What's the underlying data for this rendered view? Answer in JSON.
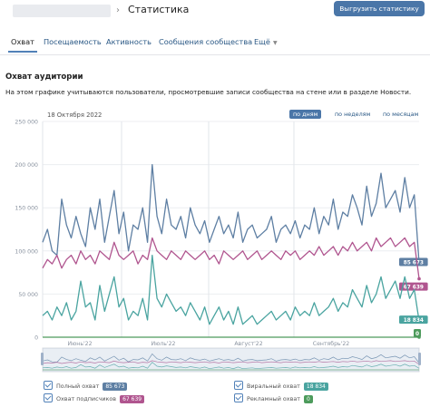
{
  "header": {
    "title": "Статистика",
    "export_label": "Выгрузить статистику"
  },
  "tabs": [
    {
      "label": "Охват",
      "active": true
    },
    {
      "label": "Посещаемость",
      "active": false
    },
    {
      "label": "Активность",
      "active": false
    },
    {
      "label": "Сообщения сообщества",
      "active": false
    },
    {
      "label": "Ещё",
      "active": false
    }
  ],
  "section": {
    "title": "Охват аудитории",
    "description": "На этом графике учитываются пользователи, просмотревшие записи сообщества на стене или в разделе Новости."
  },
  "chart_controls": {
    "date": "18 Октября 2022",
    "ranges": [
      {
        "label": "по дням",
        "active": true
      },
      {
        "label": "по неделям",
        "active": false
      },
      {
        "label": "по месяцам",
        "active": false
      }
    ]
  },
  "colors": {
    "full": "#5e7fa3",
    "subscribers": "#b0558f",
    "viral": "#4aa4a0",
    "ads": "#4d9b5c",
    "accent": "#4a76a8"
  },
  "chart_data": {
    "type": "line",
    "ylim": [
      0,
      250000
    ],
    "y_ticks": [
      "0",
      "50 000",
      "100 000",
      "150 000",
      "200 000",
      "250 000"
    ],
    "x_ticks": [
      "Июнь'22",
      "Июль'22",
      "Август'22",
      "Сентябрь'22"
    ],
    "series": [
      {
        "name": "Полный охват",
        "last_value_label": "85 673",
        "values": [
          110000,
          125000,
          100000,
          95000,
          160000,
          130000,
          115000,
          140000,
          120000,
          105000,
          150000,
          125000,
          160000,
          110000,
          140000,
          170000,
          120000,
          145000,
          100000,
          130000,
          125000,
          150000,
          110000,
          200000,
          140000,
          120000,
          160000,
          130000,
          125000,
          140000,
          115000,
          150000,
          130000,
          120000,
          135000,
          110000,
          125000,
          140000,
          120000,
          130000,
          115000,
          145000,
          110000,
          125000,
          130000,
          115000,
          120000,
          125000,
          140000,
          110000,
          125000,
          130000,
          120000,
          135000,
          115000,
          130000,
          125000,
          150000,
          120000,
          140000,
          130000,
          160000,
          125000,
          145000,
          140000,
          165000,
          150000,
          130000,
          175000,
          140000,
          155000,
          190000,
          150000,
          160000,
          170000,
          145000,
          185000,
          150000,
          165000,
          85673
        ]
      },
      {
        "name": "Охват подписчиков",
        "last_value_label": "67 639",
        "values": [
          80000,
          90000,
          85000,
          95000,
          80000,
          90000,
          95000,
          85000,
          100000,
          90000,
          95000,
          85000,
          100000,
          95000,
          90000,
          110000,
          95000,
          90000,
          95000,
          100000,
          85000,
          95000,
          90000,
          115000,
          100000,
          95000,
          90000,
          100000,
          95000,
          90000,
          100000,
          95000,
          90000,
          95000,
          100000,
          90000,
          95000,
          85000,
          100000,
          95000,
          90000,
          95000,
          100000,
          90000,
          95000,
          100000,
          90000,
          95000,
          100000,
          95000,
          90000,
          100000,
          95000,
          100000,
          90000,
          95000,
          100000,
          95000,
          105000,
          95000,
          100000,
          105000,
          95000,
          105000,
          100000,
          110000,
          100000,
          105000,
          110000,
          100000,
          115000,
          105000,
          110000,
          115000,
          105000,
          110000,
          115000,
          105000,
          110000,
          67639
        ]
      },
      {
        "name": "Виральный охват",
        "last_value_label": "18 834",
        "values": [
          25000,
          30000,
          20000,
          35000,
          25000,
          40000,
          20000,
          30000,
          65000,
          35000,
          40000,
          20000,
          60000,
          30000,
          50000,
          70000,
          35000,
          45000,
          20000,
          30000,
          25000,
          45000,
          20000,
          95000,
          45000,
          35000,
          50000,
          40000,
          30000,
          35000,
          25000,
          40000,
          30000,
          20000,
          35000,
          15000,
          25000,
          35000,
          20000,
          30000,
          15000,
          35000,
          15000,
          20000,
          25000,
          15000,
          20000,
          25000,
          30000,
          20000,
          25000,
          30000,
          20000,
          35000,
          25000,
          30000,
          25000,
          40000,
          25000,
          30000,
          35000,
          45000,
          30000,
          40000,
          35000,
          55000,
          45000,
          35000,
          60000,
          40000,
          50000,
          70000,
          45000,
          55000,
          65000,
          45000,
          70000,
          45000,
          55000,
          18834
        ]
      },
      {
        "name": "Рекламный охват",
        "last_value_label": "0",
        "values": [
          0,
          0,
          0,
          0,
          0,
          0,
          0,
          0,
          0,
          0,
          0,
          0,
          0,
          0,
          0,
          0,
          0,
          0,
          0,
          0,
          0,
          0,
          0,
          0,
          0,
          0,
          0,
          0,
          0,
          0,
          0,
          0,
          0,
          0,
          0,
          0,
          0,
          0,
          0,
          0,
          0,
          0,
          0,
          0,
          0,
          0,
          0,
          0,
          0,
          0,
          0,
          0,
          0,
          0,
          0,
          0,
          0,
          0,
          0,
          0,
          0,
          0,
          0,
          0,
          0,
          0,
          0,
          0,
          0,
          0,
          0,
          0,
          0,
          0,
          0,
          0,
          0,
          0,
          0,
          0
        ]
      }
    ],
    "legend_placement": "bottom"
  }
}
